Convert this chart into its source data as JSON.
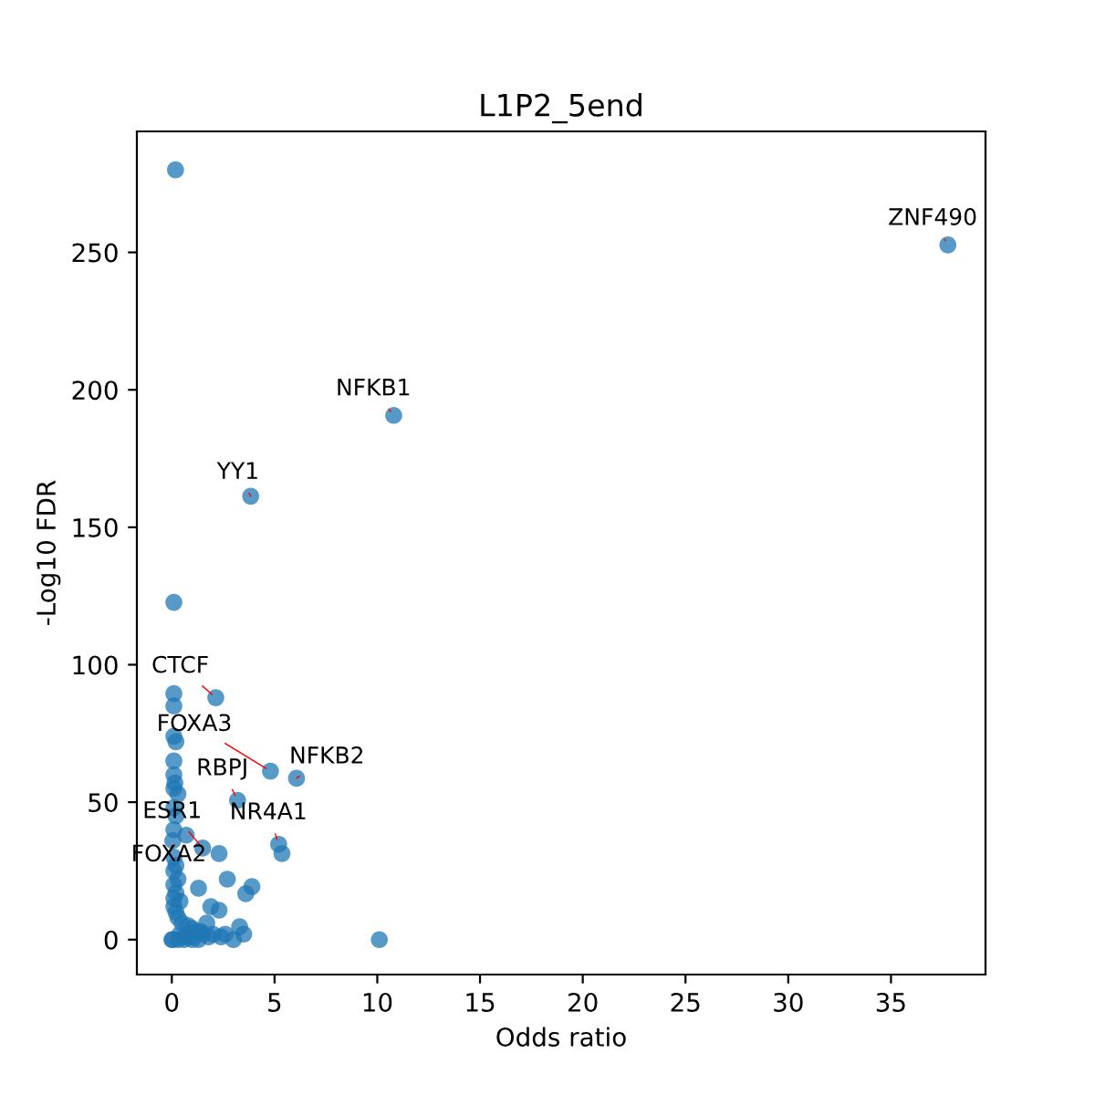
{
  "chart_data": {
    "type": "scatter",
    "title": "L1P2_5end",
    "xlabel": "Odds ratio",
    "ylabel": "-Log10 FDR",
    "xlim": [
      -1.7,
      39.6
    ],
    "ylim": [
      -12.7,
      294
    ],
    "xticks": [
      0,
      5,
      10,
      15,
      20,
      25,
      30,
      35
    ],
    "yticks": [
      0,
      50,
      100,
      150,
      200,
      250
    ],
    "grid": false,
    "marker": "circle",
    "series": [
      {
        "color": "#1f77b4",
        "x": [
          0.18,
          37.77,
          10.8,
          3.84,
          0.1,
          2.14,
          4.8,
          6.07,
          3.2,
          5.2,
          5.36,
          1.5,
          2.3,
          2.7,
          3.9,
          3.6,
          1.3,
          10.1,
          1.9,
          2.3,
          3.3,
          3.5,
          2.6,
          1.5,
          0.1,
          0.1,
          0.1,
          0.2,
          0.1,
          0.1,
          0.15,
          0.1,
          0.3,
          0.1,
          0.2,
          0.1,
          0.05,
          0.1,
          0.2,
          0.1,
          0.3,
          0.1,
          0.2,
          0.1,
          0.1,
          0.2,
          0.3,
          0.5,
          0.8,
          1.0,
          1.2,
          0.4,
          0.6,
          0.9,
          1.4,
          1.7,
          2.0,
          0.3,
          0.6,
          1.0,
          1.3,
          1.8,
          2.4,
          3.0,
          0.0,
          0.05,
          0.4,
          0.7
        ],
        "values": [
          280,
          252.7,
          190.7,
          161.3,
          122.7,
          88,
          61.3,
          58.7,
          50.7,
          34.7,
          31.3,
          33.3,
          31.3,
          22,
          19.3,
          16.7,
          18.7,
          0,
          12,
          10.7,
          4.7,
          2,
          2,
          2,
          89.5,
          85,
          74,
          72,
          65,
          60,
          57,
          55,
          53,
          48,
          45,
          40,
          36,
          30,
          27,
          25,
          22,
          20,
          17,
          15,
          12,
          10,
          8,
          6,
          5,
          4,
          3,
          2,
          1,
          1,
          3,
          6,
          2,
          0,
          0,
          0,
          0,
          1,
          1,
          0,
          0,
          0,
          14,
          38
        ]
      }
    ],
    "annotations": [
      {
        "text": "ZNF490",
        "x": 37.77,
        "y": 252.7
      },
      {
        "text": "NFKB1",
        "x": 10.8,
        "y": 190.7
      },
      {
        "text": "YY1",
        "x": 3.84,
        "y": 161.3
      },
      {
        "text": "CTCF",
        "x": 2.14,
        "y": 88
      },
      {
        "text": "FOXA3",
        "x": 4.8,
        "y": 61.3
      },
      {
        "text": "NFKB2",
        "x": 6.07,
        "y": 58.7
      },
      {
        "text": "RBPJ",
        "x": 3.2,
        "y": 50.7
      },
      {
        "text": "NR4A1",
        "x": 5.2,
        "y": 34.7
      },
      {
        "text": "ESR1",
        "x": 1.5,
        "y": 33.3
      },
      {
        "text": "FOXA2",
        "x": 0.1,
        "y": 36
      }
    ]
  }
}
